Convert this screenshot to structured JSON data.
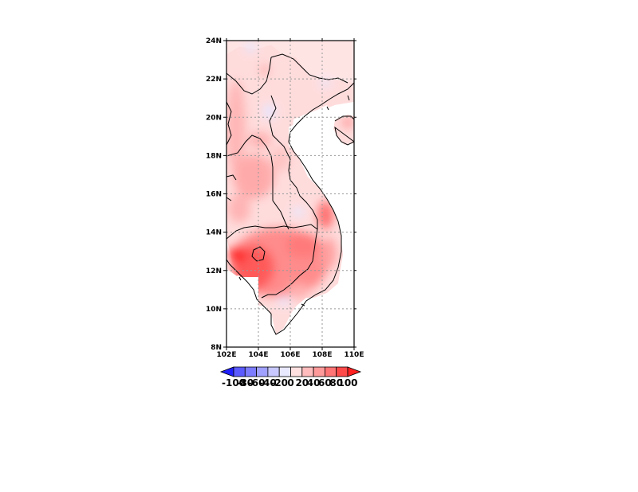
{
  "map": {
    "lat_labels": [
      "8N",
      "10N",
      "12N",
      "14N",
      "16N",
      "18N",
      "20N",
      "22N",
      "24N"
    ],
    "lon_labels": [
      "102E",
      "104E",
      "106E",
      "108E",
      "110E"
    ],
    "lat_range": [
      8,
      24
    ],
    "lon_range": [
      102,
      110
    ],
    "gridlines": true
  },
  "colorbar": {
    "levels": [
      "-100",
      "-80",
      "-60",
      "-40",
      "-20",
      "0",
      "20",
      "40",
      "60",
      "80",
      "100"
    ],
    "colors": [
      "#2020ff",
      "#5a5aff",
      "#7c7cff",
      "#a0a0ff",
      "#c8c8ff",
      "#e8e8ff",
      "#ffe0e0",
      "#ffbcbc",
      "#ff9a9a",
      "#ff7474",
      "#ff4a4a",
      "#ff2020"
    ]
  }
}
